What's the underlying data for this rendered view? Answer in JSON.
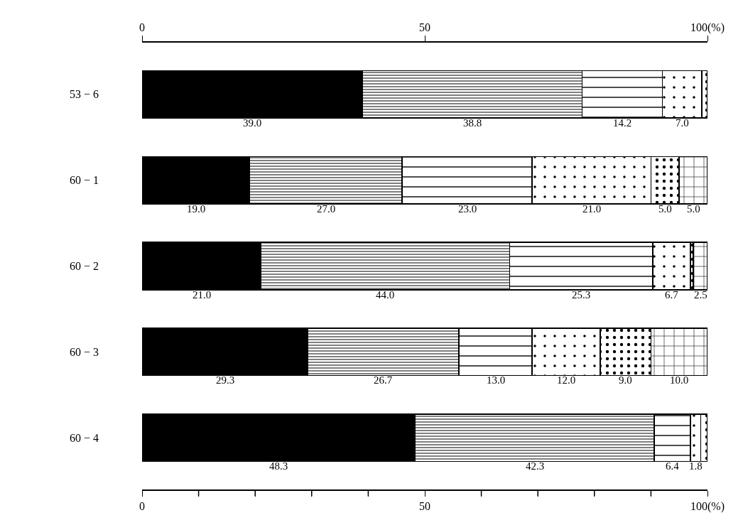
{
  "chart_data": {
    "type": "bar",
    "orientation": "horizontal",
    "stacked": true,
    "categories": [
      "53 − 6",
      "60 − 1",
      "60 − 2",
      "60 − 3",
      "60 − 4"
    ],
    "series": [
      {
        "color": "#000000",
        "values": [
          39.0,
          19.0,
          21.0,
          29.3,
          48.3
        ],
        "value_labels": [
          "39.0",
          "19.0",
          "21.0",
          "29.3",
          "48.3"
        ]
      },
      {
        "color": "#000000",
        "values": [
          38.8,
          27.0,
          44.0,
          26.7,
          42.3
        ],
        "value_labels": [
          "38.8",
          "27.0",
          "44.0",
          "26.7",
          "42.3"
        ]
      },
      {
        "color": "#000000",
        "values": [
          14.2,
          23.0,
          25.3,
          13.0,
          6.4
        ],
        "value_labels": [
          "14.2",
          "23.0",
          "25.3",
          "13.0",
          "6.4"
        ]
      },
      {
        "color": "#000000",
        "values": [
          7.0,
          21.0,
          6.7,
          12.0,
          1.8
        ],
        "value_labels": [
          "7.0",
          "21.0",
          "6.7",
          "12.0",
          "1.8"
        ]
      },
      {
        "color": "#000000",
        "values": [
          1.0,
          5.0,
          0.5,
          9.0,
          1.2
        ],
        "value_labels": [
          null,
          "5.0",
          null,
          "9.0",
          null
        ]
      },
      {
        "color": "#000000",
        "values": [
          null,
          5.0,
          2.5,
          10.0,
          null
        ],
        "value_labels": [
          null,
          "5.0",
          "2.5",
          "10.0",
          null
        ]
      }
    ],
    "xlim": [
      0,
      100
    ],
    "xticks": [
      0,
      {
        "value": 10,
        "label": null
      },
      {
        "value": 20,
        "label": null
      },
      {
        "value": 30,
        "label": null
      },
      {
        "value": 40,
        "label": null
      },
      50,
      {
        "value": 60,
        "label": null
      },
      {
        "value": 70,
        "label": null
      },
      {
        "value": 80,
        "label": null
      },
      {
        "value": 90,
        "label": null
      },
      {
        "value": 100,
        "label": "100(%)"
      }
    ],
    "x2lim": [
      0,
      100
    ],
    "x2ticks": [
      0,
      50,
      {
        "value": 100,
        "label": "100(%)"
      }
    ]
  }
}
